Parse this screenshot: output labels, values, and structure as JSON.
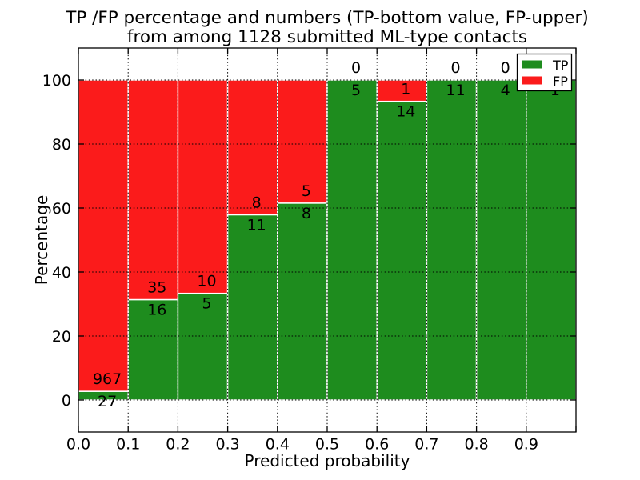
{
  "chart_data": {
    "type": "bar",
    "stacked": true,
    "normalize": "percent",
    "title_line1": "TP /FP percentage and numbers (TP-bottom value, FP-upper)",
    "title_line2": "from among 1128 submitted ML-type contacts",
    "xlabel": "Predicted probability",
    "ylabel": "Percentage",
    "xlim": [
      0.0,
      1.0
    ],
    "ylim": [
      -10,
      110
    ],
    "bin_width": 0.1,
    "x_tick_labels": [
      "0.0",
      "0.1",
      "0.2",
      "0.3",
      "0.4",
      "0.5",
      "0.6",
      "0.7",
      "0.8",
      "0.9"
    ],
    "y_ticks": [
      0,
      20,
      40,
      60,
      80,
      100
    ],
    "grid": {
      "style": "dotted",
      "color": "#000000"
    },
    "series": [
      {
        "name": "TP",
        "color": "#1e8c1e",
        "values": [
          27,
          16,
          5,
          11,
          8,
          5,
          14,
          11,
          4,
          1
        ]
      },
      {
        "name": "FP",
        "color": "#fb1b1b",
        "values": [
          967,
          35,
          10,
          8,
          5,
          0,
          1,
          0,
          0,
          0
        ]
      }
    ],
    "legend": {
      "position": "upper right"
    }
  }
}
